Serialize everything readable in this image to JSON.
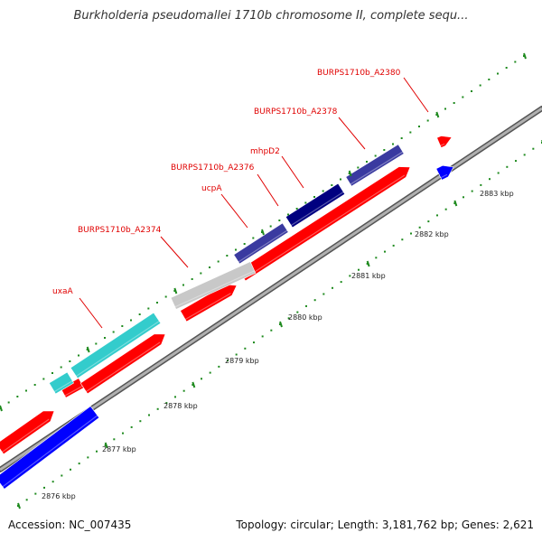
{
  "header": {
    "title": "Burkholderia pseudomallei 1710b chromosome II, complete sequ..."
  },
  "footer": {
    "accession": "Accession: NC_007435",
    "summary": "Topology: circular; Length: 3,181,762 bp; Genes: 2,621"
  },
  "colors": {
    "backbone": "#8c8c8c",
    "tick": "#1e8a1e",
    "label": "#e00000",
    "gene_forward": "#ff0000",
    "gene_reverse": "#0000ff",
    "gene_cyan": "#33cccc",
    "gene_gray": "#c8c8c8",
    "gene_navy": "#000080",
    "gene_slate": "#3a3aa0"
  },
  "axis": {
    "unit": "kbp",
    "tick_labels": [
      "2876 kbp",
      "2877 kbp",
      "2878 kbp",
      "2879 kbp",
      "2880 kbp",
      "2881 kbp",
      "2882 kbp",
      "2883 kbp"
    ]
  },
  "gene_labels": [
    "uxaA",
    "BURPS1710b_A2374",
    "ucpA",
    "BURPS1710b_A2376",
    "mhpD2",
    "BURPS1710b_A2378",
    "BURPS1710b_A2380"
  ],
  "genes": [
    {
      "label_ref": 0,
      "color": "gene_cyan"
    },
    {
      "label_ref": 1,
      "color": "gene_gray"
    },
    {
      "label_ref": 2,
      "color": "gene_slate"
    },
    {
      "label_ref": 3,
      "color": "gene_navy"
    },
    {
      "label_ref": 4,
      "color": "gene_navy"
    },
    {
      "label_ref": 5,
      "color": "gene_slate"
    },
    {
      "label_ref": 6,
      "color": "gene_forward"
    }
  ]
}
